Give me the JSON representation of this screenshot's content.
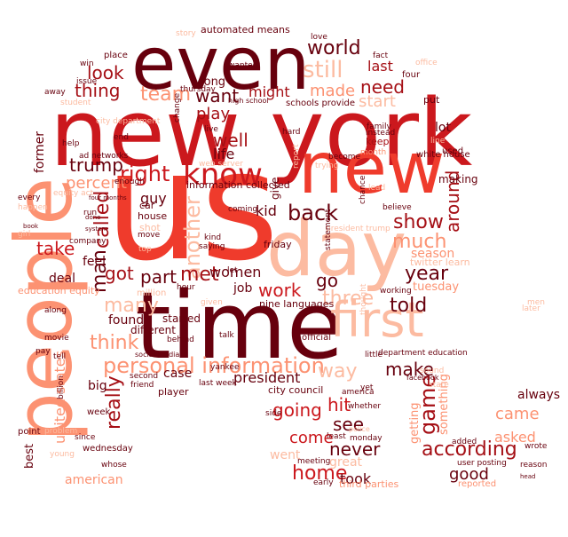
{
  "palette": [
    "#67000d",
    "#a50f15",
    "#cb181d",
    "#ef3b2c",
    "#fb6a4a",
    "#fc9272",
    "#fcbba1"
  ],
  "words": [
    {
      "text": "us",
      "color": "#ef3b2c"
    },
    {
      "text": "new york",
      "color": "#cb181d"
    },
    {
      "text": "time",
      "color": "#67000d"
    },
    {
      "text": "people",
      "color": "#fc9272"
    },
    {
      "text": "even",
      "color": "#67000d"
    },
    {
      "text": "new",
      "color": "#ef3b2c"
    },
    {
      "text": "day",
      "color": "#fcbba1"
    },
    {
      "text": "first",
      "color": "#fcbba1"
    },
    {
      "text": "personal information",
      "color": "#fc9272"
    },
    {
      "text": "know",
      "color": "#cb181d"
    },
    {
      "text": "world",
      "color": "#67000d"
    },
    {
      "text": "still",
      "color": "#fcbba1"
    },
    {
      "text": "made",
      "color": "#fc9272"
    },
    {
      "text": "need",
      "color": "#a50f15"
    },
    {
      "text": "last",
      "color": "#a50f15"
    },
    {
      "text": "start",
      "color": "#fcbba1"
    },
    {
      "text": "look",
      "color": "#a50f15"
    },
    {
      "text": "thing",
      "color": "#a50f15"
    },
    {
      "text": "team",
      "color": "#fc9272"
    },
    {
      "text": "want",
      "color": "#67000d"
    },
    {
      "text": "might",
      "color": "#a50f15"
    },
    {
      "text": "play",
      "color": "#a50f15"
    },
    {
      "text": "well",
      "color": "#a50f15"
    },
    {
      "text": "life",
      "color": "#67000d"
    },
    {
      "text": "trump",
      "color": "#67000d"
    },
    {
      "text": "right",
      "color": "#cb181d"
    },
    {
      "text": "percent",
      "color": "#fc9272"
    },
    {
      "text": "called",
      "color": "#a50f15"
    },
    {
      "text": "another",
      "color": "#fcbba1"
    },
    {
      "text": "kid",
      "color": "#67000d"
    },
    {
      "text": "back",
      "color": "#67000d"
    },
    {
      "text": "show",
      "color": "#a50f15"
    },
    {
      "text": "around",
      "color": "#a50f15"
    },
    {
      "text": "much",
      "color": "#fc9272"
    },
    {
      "text": "take",
      "color": "#cb181d"
    },
    {
      "text": "man",
      "color": "#67000d"
    },
    {
      "text": "got",
      "color": "#a50f15"
    },
    {
      "text": "part",
      "color": "#67000d"
    },
    {
      "text": "met",
      "color": "#a50f15"
    },
    {
      "text": "work",
      "color": "#cb181d"
    },
    {
      "text": "go",
      "color": "#67000d"
    },
    {
      "text": "year",
      "color": "#67000d"
    },
    {
      "text": "three",
      "color": "#fcbba1"
    },
    {
      "text": "told",
      "color": "#67000d"
    },
    {
      "text": "many",
      "color": "#fcbba1"
    },
    {
      "text": "think",
      "color": "#fc9272"
    },
    {
      "text": "really",
      "color": "#a50f15"
    },
    {
      "text": "united states",
      "color": "#fc9272"
    },
    {
      "text": "way",
      "color": "#fcbba1"
    },
    {
      "text": "make",
      "color": "#67000d"
    },
    {
      "text": "going",
      "color": "#cb181d"
    },
    {
      "text": "hit",
      "color": "#cb181d"
    },
    {
      "text": "game",
      "color": "#a50f15"
    },
    {
      "text": "see",
      "color": "#67000d"
    },
    {
      "text": "come",
      "color": "#cb181d"
    },
    {
      "text": "never",
      "color": "#67000d"
    },
    {
      "text": "according",
      "color": "#a50f15"
    },
    {
      "text": "home",
      "color": "#cb181d"
    },
    {
      "text": "took",
      "color": "#67000d"
    },
    {
      "text": "good",
      "color": "#67000d"
    },
    {
      "text": "came",
      "color": "#fc9272"
    },
    {
      "text": "asked",
      "color": "#fc9272"
    },
    {
      "text": "always",
      "color": "#67000d"
    },
    {
      "text": "american",
      "color": "#fc9272"
    },
    {
      "text": "big",
      "color": "#67000d"
    },
    {
      "text": "president",
      "color": "#67000d"
    },
    {
      "text": "found",
      "color": "#67000d"
    },
    {
      "text": "feel",
      "color": "#67000d"
    },
    {
      "text": "deal",
      "color": "#67000d"
    },
    {
      "text": "women",
      "color": "#67000d"
    },
    {
      "text": "job",
      "color": "#67000d"
    },
    {
      "text": "guy",
      "color": "#67000d"
    },
    {
      "text": "great",
      "color": "#fcbba1"
    },
    {
      "text": "went",
      "color": "#fcbba1"
    },
    {
      "text": "automated means",
      "color": "#67000d"
    },
    {
      "text": "long",
      "color": "#67000d"
    },
    {
      "text": "city council",
      "color": "#67000d"
    },
    {
      "text": "last week",
      "color": "#67000d"
    },
    {
      "text": "nine languages",
      "color": "#67000d"
    },
    {
      "text": "department education",
      "color": "#67000d"
    },
    {
      "text": "education equity",
      "color": "#fc9272"
    },
    {
      "text": "third parties",
      "color": "#fc9272"
    },
    {
      "text": "user posting",
      "color": "#67000d"
    },
    {
      "text": "twitter learn",
      "color": "#fcbba1"
    },
    {
      "text": "white house",
      "color": "#67000d"
    },
    {
      "text": "information collected",
      "color": "#67000d"
    },
    {
      "text": "president trump",
      "color": "#fcbba1"
    },
    {
      "text": "schools provide",
      "color": "#67000d"
    },
    {
      "text": "season",
      "color": "#fc9272"
    },
    {
      "text": "tuesday",
      "color": "#fc9272"
    },
    {
      "text": "friday",
      "color": "#67000d"
    },
    {
      "text": "lot",
      "color": "#67000d"
    },
    {
      "text": "keep",
      "color": "#a50f15"
    },
    {
      "text": "making",
      "color": "#67000d"
    },
    {
      "text": "getting",
      "color": "#fc9272"
    },
    {
      "text": "something",
      "color": "#fc9272"
    },
    {
      "text": "case",
      "color": "#67000d"
    },
    {
      "text": "player",
      "color": "#67000d"
    },
    {
      "text": "former",
      "color": "#67000d"
    },
    {
      "text": "different",
      "color": "#67000d"
    },
    {
      "text": "started",
      "color": "#67000d"
    },
    {
      "text": "give",
      "color": "#67000d"
    },
    {
      "text": "four",
      "color": "#67000d"
    },
    {
      "text": "put",
      "color": "#67000d"
    },
    {
      "text": "used",
      "color": "#67000d"
    },
    {
      "text": "place",
      "color": "#67000d"
    },
    {
      "text": "story",
      "color": "#fcbba1"
    },
    {
      "text": "love",
      "color": "#67000d"
    },
    {
      "text": "fact",
      "color": "#67000d"
    },
    {
      "text": "official",
      "color": "#67000d"
    },
    {
      "text": "yet",
      "color": "#67000d"
    },
    {
      "text": "since",
      "color": "#67000d"
    },
    {
      "text": "week",
      "color": "#67000d"
    },
    {
      "text": "point",
      "color": "#67000d"
    },
    {
      "text": "best",
      "color": "#67000d"
    },
    {
      "text": "wednesday",
      "color": "#67000d"
    },
    {
      "text": "whose",
      "color": "#67000d"
    },
    {
      "text": "monday",
      "color": "#67000d"
    },
    {
      "text": "meeting",
      "color": "#67000d"
    },
    {
      "text": "early",
      "color": "#67000d"
    },
    {
      "text": "reason",
      "color": "#67000d"
    },
    {
      "text": "reported",
      "color": "#fc9272"
    },
    {
      "text": "added",
      "color": "#67000d"
    },
    {
      "text": "wanted",
      "color": "#67000d"
    },
    {
      "text": "car",
      "color": "#67000d"
    },
    {
      "text": "house",
      "color": "#67000d"
    },
    {
      "text": "company",
      "color": "#67000d"
    },
    {
      "text": "along",
      "color": "#67000d"
    },
    {
      "text": "movie",
      "color": "#67000d"
    },
    {
      "text": "second",
      "color": "#67000d"
    },
    {
      "text": "friend",
      "color": "#67000d"
    },
    {
      "text": "hour",
      "color": "#67000d"
    },
    {
      "text": "saying",
      "color": "#67000d"
    },
    {
      "text": "talk",
      "color": "#67000d"
    },
    {
      "text": "behind",
      "color": "#67000d"
    },
    {
      "text": "working",
      "color": "#67000d"
    },
    {
      "text": "statement",
      "color": "#67000d"
    },
    {
      "text": "thursday",
      "color": "#67000d"
    },
    {
      "text": "family",
      "color": "#67000d"
    },
    {
      "text": "instead",
      "color": "#67000d"
    },
    {
      "text": "live",
      "color": "#67000d"
    },
    {
      "text": "end",
      "color": "#67000d"
    },
    {
      "text": "win",
      "color": "#67000d"
    },
    {
      "text": "issue",
      "color": "#67000d"
    },
    {
      "text": "away",
      "color": "#67000d"
    },
    {
      "text": "every",
      "color": "#67000d"
    },
    {
      "text": "run",
      "color": "#67000d"
    },
    {
      "text": "shot",
      "color": "#fcbba1"
    },
    {
      "text": "move",
      "color": "#67000d"
    },
    {
      "text": "enough",
      "color": "#67000d"
    },
    {
      "text": "trying",
      "color": "#fcbba1"
    },
    {
      "text": "believe",
      "color": "#67000d"
    },
    {
      "text": "become",
      "color": "#67000d"
    },
    {
      "text": "student",
      "color": "#fcbba1"
    },
    {
      "text": "happen",
      "color": "#fcbba1"
    },
    {
      "text": "girl",
      "color": "#fcbba1"
    },
    {
      "text": "pay",
      "color": "#67000d"
    },
    {
      "text": "tell",
      "color": "#67000d"
    },
    {
      "text": "billion",
      "color": "#67000d"
    },
    {
      "text": "young",
      "color": "#fcbba1"
    },
    {
      "text": "problem",
      "color": "#fcbba1"
    },
    {
      "text": "wrote",
      "color": "#67000d"
    },
    {
      "text": "america",
      "color": "#67000d"
    },
    {
      "text": "least",
      "color": "#67000d"
    },
    {
      "text": "report",
      "color": "#fcbba1"
    },
    {
      "text": "coming",
      "color": "#67000d"
    },
    {
      "text": "let",
      "color": "#67000d"
    },
    {
      "text": "given",
      "color": "#fcbba1"
    },
    {
      "text": "kind",
      "color": "#67000d"
    },
    {
      "text": "chance",
      "color": "#67000d"
    },
    {
      "text": "office",
      "color": "#fcbba1"
    },
    {
      "text": "lead",
      "color": "#fcbba1"
    },
    {
      "text": "month",
      "color": "#fc9272"
    },
    {
      "text": "equity act",
      "color": "#fcbba1"
    },
    {
      "text": "ad networks",
      "color": "#67000d"
    },
    {
      "text": "social media",
      "color": "#67000d"
    },
    {
      "text": "web server",
      "color": "#fcbba1"
    },
    {
      "text": "city department",
      "color": "#fcbba1"
    },
    {
      "text": "high school",
      "color": "#67000d"
    },
    {
      "text": "men",
      "color": "#fcbba1"
    },
    {
      "text": "yankee",
      "color": "#67000d"
    },
    {
      "text": "little",
      "color": "#67000d"
    },
    {
      "text": "thought",
      "color": "#fcbba1"
    },
    {
      "text": "million",
      "color": "#fcbba1"
    },
    {
      "text": "later",
      "color": "#fcbba1"
    },
    {
      "text": "whether",
      "color": "#67000d"
    },
    {
      "text": "facebook",
      "color": "#67000d"
    },
    {
      "text": "sound",
      "color": "#fcbba1"
    },
    {
      "text": "state",
      "color": "#fcbba1"
    },
    {
      "text": "top",
      "color": "#fcbba1"
    },
    {
      "text": "four months",
      "color": "#67000d"
    },
    {
      "text": "side",
      "color": "#67000d"
    },
    {
      "text": "hard",
      "color": "#67000d"
    },
    {
      "text": "help",
      "color": "#67000d"
    },
    {
      "text": "line",
      "color": "#fcbba1"
    },
    {
      "text": "change",
      "color": "#67000d"
    },
    {
      "text": "head",
      "color": "#67000d"
    },
    {
      "text": "system",
      "color": "#67000d"
    },
    {
      "text": "book",
      "color": "#67000d"
    },
    {
      "text": "done",
      "color": "#67000d"
    },
    {
      "text": "police",
      "color": "#fcbba1"
    }
  ]
}
